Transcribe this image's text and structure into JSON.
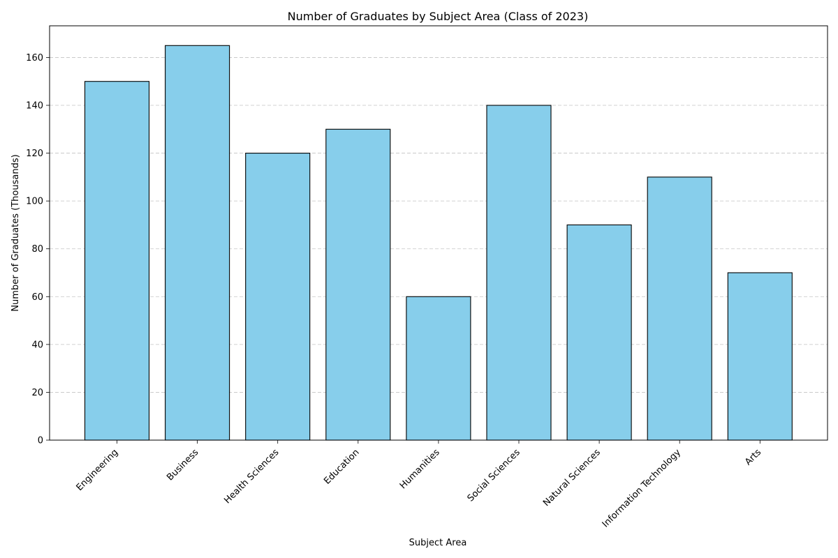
{
  "chart_data": {
    "type": "bar",
    "title": "Number of Graduates by Subject Area (Class of 2023)",
    "xlabel": "Subject Area",
    "ylabel": "Number of Graduates (Thousands)",
    "categories": [
      "Engineering",
      "Business",
      "Health Sciences",
      "Education",
      "Humanities",
      "Social Sciences",
      "Natural Sciences",
      "Information Technology",
      "Arts"
    ],
    "values": [
      150,
      165,
      120,
      130,
      60,
      140,
      90,
      110,
      70
    ],
    "ylim": [
      0,
      173.25
    ],
    "yticks": [
      0,
      20,
      40,
      60,
      80,
      100,
      120,
      140,
      160
    ],
    "grid": "y-dashed",
    "bar_color": "#87ceeb",
    "edge_color": "#000000"
  }
}
